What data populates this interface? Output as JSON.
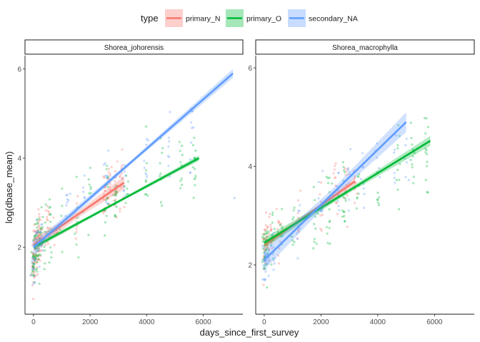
{
  "chart_data": {
    "type": "scatter",
    "legend": {
      "title": "type",
      "position": "top",
      "entries": [
        {
          "name": "primary_N",
          "color": "#F8766D"
        },
        {
          "name": "primary_O",
          "color": "#00BA38"
        },
        {
          "name": "secondary_NA",
          "color": "#619CFF"
        }
      ]
    },
    "xlabel": "days_since_first_survey",
    "ylabel": "log(dbase_mean)",
    "xlim": [
      -300,
      7400
    ],
    "x_ticks": [
      0,
      2000,
      4000,
      6000
    ],
    "grid": false,
    "panels": [
      {
        "title": "Shorea_johorensis",
        "ylim": [
          0.5,
          6.3
        ],
        "y_ticks": [
          2,
          4,
          6
        ],
        "trends": [
          {
            "series": "primary_N",
            "x": [
              0,
              3200
            ],
            "y": [
              2.05,
              3.45
            ],
            "band": 0.15
          },
          {
            "series": "primary_O",
            "x": [
              0,
              5850
            ],
            "y": [
              2.0,
              4.0
            ],
            "band": 0.06
          },
          {
            "series": "secondary_NA",
            "x": [
              0,
              7050
            ],
            "y": [
              2.0,
              5.9
            ],
            "band": 0.1
          }
        ],
        "scatter_clusters": [
          {
            "series": "primary_N",
            "x": [
              0,
              50,
              120,
              200,
              250,
              500,
              800,
              1500,
              2500,
              2700,
              2900,
              3100
            ],
            "y_center": [
              1.5,
              1.9,
              2.0,
              2.1,
              2.2,
              2.5,
              2.4,
              2.7,
              3.2,
              3.4,
              3.4,
              3.5
            ],
            "y_spread": [
              0.5,
              0.6,
              0.6,
              0.6,
              0.5,
              0.6,
              0.5,
              0.6,
              0.7,
              0.7,
              0.7,
              0.6
            ],
            "n": [
              20,
              25,
              20,
              20,
              14,
              16,
              8,
              10,
              18,
              16,
              16,
              14
            ]
          },
          {
            "series": "primary_O",
            "x": [
              0,
              60,
              150,
              250,
              400,
              600,
              1000,
              1500,
              2000,
              2600,
              2900,
              3300,
              4000,
              4500,
              5200,
              5700
            ],
            "y_center": [
              1.6,
              2.0,
              2.1,
              2.2,
              2.3,
              2.4,
              2.5,
              2.8,
              3.0,
              3.1,
              3.2,
              3.4,
              3.4,
              3.6,
              3.7,
              3.7
            ],
            "y_spread": [
              0.5,
              0.6,
              0.6,
              0.6,
              0.6,
              0.7,
              0.7,
              0.8,
              0.8,
              0.9,
              0.9,
              0.8,
              0.8,
              0.8,
              0.9,
              0.8
            ],
            "n": [
              20,
              22,
              20,
              18,
              12,
              12,
              8,
              8,
              8,
              16,
              18,
              8,
              8,
              10,
              10,
              14
            ]
          },
          {
            "series": "secondary_NA",
            "x": [
              0,
              100,
              300,
              1200,
              1800,
              2600,
              3200,
              4000,
              4800,
              5600,
              7100
            ],
            "y_center": [
              1.6,
              2.0,
              2.2,
              3.0,
              3.3,
              3.5,
              3.7,
              4.0,
              4.2,
              4.5,
              3.1
            ],
            "y_spread": [
              0.5,
              0.5,
              0.5,
              0.6,
              0.6,
              0.7,
              0.6,
              0.6,
              0.7,
              0.8,
              0.1
            ],
            "n": [
              16,
              14,
              10,
              8,
              6,
              10,
              8,
              8,
              8,
              10,
              1
            ]
          }
        ]
      },
      {
        "title": "Shorea_macrophylla",
        "ylim": [
          1.0,
          6.25
        ],
        "y_ticks": [
          2,
          4,
          6
        ],
        "trends": [
          {
            "series": "primary_N",
            "x": [
              0,
              3200
            ],
            "y": [
              2.4,
              3.7
            ],
            "band": 0.08
          },
          {
            "series": "primary_O",
            "x": [
              0,
              5850
            ],
            "y": [
              2.45,
              4.52
            ],
            "band": 0.1
          },
          {
            "series": "secondary_NA",
            "x": [
              0,
              5000
            ],
            "y": [
              2.1,
              4.9
            ],
            "band": 0.2
          }
        ],
        "scatter_clusters": [
          {
            "series": "primary_N",
            "x": [
              0,
              100,
              200,
              500,
              1200,
              2000,
              2500,
              2900,
              3200
            ],
            "y_center": [
              2.4,
              2.5,
              2.6,
              2.7,
              2.9,
              3.1,
              3.4,
              3.5,
              3.6
            ],
            "y_spread": [
              0.4,
              0.5,
              0.5,
              0.6,
              0.6,
              0.7,
              0.8,
              0.8,
              0.7
            ],
            "n": [
              18,
              16,
              14,
              12,
              8,
              10,
              12,
              12,
              10
            ]
          },
          {
            "series": "primary_O",
            "x": [
              0,
              100,
              300,
              600,
              1000,
              1800,
              2300,
              2800,
              3300,
              4000,
              4700,
              5200,
              5700
            ],
            "y_center": [
              2.3,
              2.4,
              2.5,
              2.6,
              2.8,
              3.0,
              3.3,
              3.5,
              3.4,
              3.6,
              3.9,
              4.1,
              4.3
            ],
            "y_spread": [
              0.5,
              0.6,
              0.6,
              0.6,
              0.7,
              0.8,
              0.9,
              0.9,
              0.8,
              0.8,
              0.8,
              0.9,
              0.9
            ],
            "n": [
              20,
              20,
              16,
              12,
              10,
              10,
              14,
              16,
              8,
              8,
              10,
              12,
              14
            ]
          },
          {
            "series": "secondary_NA",
            "x": [
              0,
              100,
              300,
              1200,
              2000,
              2600,
              3000,
              3500,
              4000,
              4600,
              5000
            ],
            "y_center": [
              2.0,
              2.1,
              2.3,
              2.8,
              3.2,
              3.5,
              3.6,
              3.7,
              3.8,
              3.9,
              4.1
            ],
            "y_spread": [
              0.4,
              0.5,
              0.5,
              0.6,
              0.7,
              0.7,
              0.7,
              0.7,
              0.7,
              0.8,
              0.8
            ],
            "n": [
              14,
              12,
              10,
              8,
              8,
              10,
              10,
              8,
              6,
              6,
              6
            ]
          }
        ]
      }
    ]
  }
}
